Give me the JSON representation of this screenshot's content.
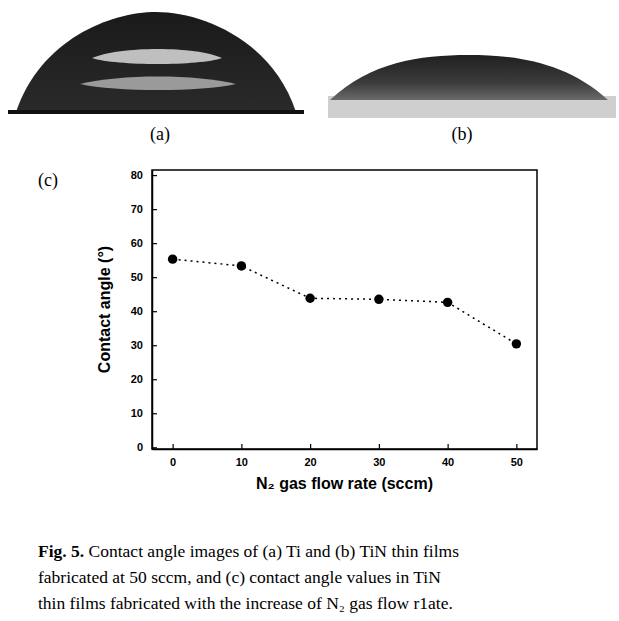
{
  "panel_labels": [
    "(a)",
    "(b)",
    "(c)"
  ],
  "caption": {
    "label": "Fig. 5.",
    "lines": [
      " Contact angle images of (a) Ti and (b) TiN thin films",
      "fabricated at 50 sccm, and (c) contact angle values in TiN",
      "thin films fabricated with the increase of N₂ gas flow r1ate."
    ]
  },
  "chart_data": {
    "type": "line",
    "x_label": "N₂ gas flow rate (sccm)",
    "y_label": "Contact angle (°)",
    "x": [
      0,
      10,
      20,
      30,
      40,
      50
    ],
    "values": [
      55.3,
      53.3,
      43.8,
      43.5,
      42.6,
      30.4
    ],
    "color": "#000000",
    "marker": "circle",
    "line_style": "dotted",
    "xlim": [
      -3,
      53
    ],
    "xticks": [
      0,
      10,
      20,
      30,
      40,
      50
    ],
    "ylim": [
      -0.5,
      81.5
    ],
    "yticks": [
      0,
      10,
      20,
      30,
      40,
      50,
      60,
      70,
      80
    ]
  }
}
